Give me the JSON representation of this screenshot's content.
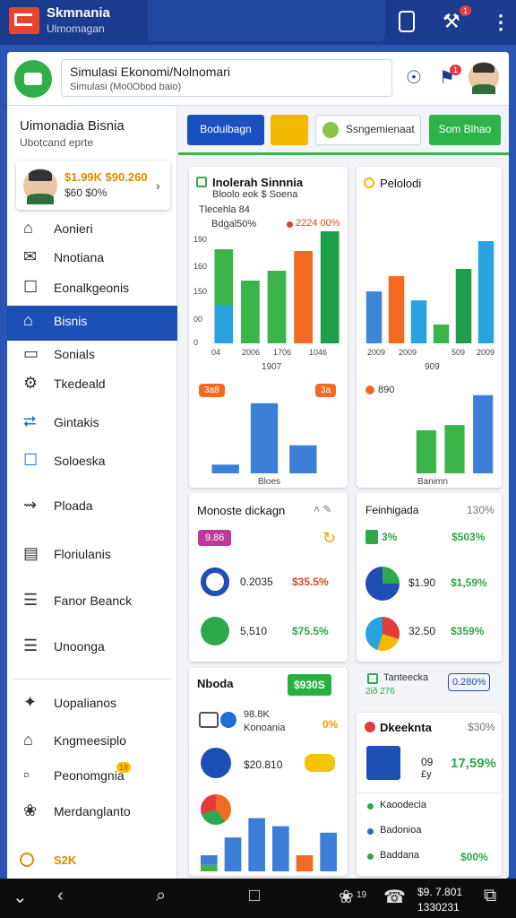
{
  "top_bar": {
    "app_name": "Skmnania",
    "app_subtitle": "Ulmomagan",
    "badge": "1"
  },
  "header": {
    "search_title": "Simulasi Ekonomi/Nolnomari",
    "search_subtitle": "Simulasi (Mo0Obod baio)",
    "badge": "1"
  },
  "sidebar": {
    "title": "Uimonadia Bisnia",
    "subtitle": "Ubotcand eprte",
    "profile": {
      "amounts": "$1.99K $90.260",
      "detail": "$60 $0%"
    },
    "menu": [
      "Aonieri",
      "Nnotiana",
      "Eonalkgeonis",
      "Bisnis",
      "Sonials",
      "Tkedeald",
      "Gintakis",
      "Soloeska",
      "Ploada",
      "Floriulanis",
      "Fanor Beanck",
      "Unoonga",
      "Uopalianos",
      "Kngmeesiplo",
      "Peonomgnia",
      "Merdanglanto"
    ],
    "menu_badge": "18",
    "footer": "S2K"
  },
  "toolbar": {
    "primary": "Bodulbagn",
    "search": "Ssngemienaat",
    "action": "Som Blhao"
  },
  "cards": [
    {
      "title": "Inolerah Sinnnia",
      "subtitle": "Bloolo eok $ Soena",
      "line1": "Tlecehla 84",
      "line2": "Bdgal50%",
      "legend": "2224 00%",
      "y_labels": [
        "190",
        "160",
        "150",
        "00",
        "0"
      ],
      "x_labels": [
        "04",
        "2006",
        "1706",
        "1046"
      ],
      "x_title": "1907",
      "chart": {
        "ylim": [
          0,
          130
        ],
        "bars": [
          [
            {
              "value": 43,
              "color": "#29a3e0"
            },
            {
              "value": 62,
              "color": "#3bb54a"
            }
          ],
          [
            {
              "value": 70,
              "color": "#3bb54a"
            }
          ],
          [
            {
              "value": 81,
              "color": "#3bb54a"
            }
          ],
          [
            {
              "value": 103,
              "color": "#f26a21"
            }
          ],
          [
            {
              "value": 125,
              "color": "#1f9e4a"
            }
          ]
        ]
      }
    },
    {
      "title": "Pelolodi",
      "x_labels": [
        "2009",
        "2009",
        "509",
        "2009"
      ],
      "x_title": "909",
      "chart": {
        "ylim": [
          0,
          130
        ],
        "bars": [
          [
            {
              "value": 58,
              "color": "#3d86d8"
            }
          ],
          [
            {
              "value": 75,
              "color": "#f26a21"
            }
          ],
          [
            {
              "value": 48,
              "color": "#29a3e0"
            }
          ],
          [
            {
              "value": 21,
              "color": "#3bb54a"
            }
          ],
          [
            {
              "value": 83,
              "color": "#1f9e4a"
            }
          ],
          [
            {
              "value": 114,
              "color": "#29a3e0"
            }
          ]
        ]
      }
    },
    {
      "badges": [
        "3a8",
        "3a"
      ],
      "x_title": "Bloes",
      "chart": {
        "ylim": [
          0,
          90
        ],
        "bars": [
          [
            {
              "value": 10,
              "color": "#3d7fd8"
            }
          ],
          [
            {
              "value": 80,
              "color": "#3d7fd8"
            }
          ],
          [
            {
              "value": 32,
              "color": "#3d7fd8"
            }
          ]
        ]
      }
    },
    {
      "badge": "890",
      "x_title": "Banimn",
      "chart": {
        "ylim": [
          0,
          100
        ],
        "bars": [
          [
            {
              "value": 49,
              "color": "#3bb54a"
            }
          ],
          [
            {
              "value": 55,
              "color": "#3bb54a"
            }
          ],
          [
            {
              "value": 89,
              "color": "#3d7fd8"
            }
          ]
        ]
      }
    },
    {
      "title": "Monoste dickagn",
      "badge": "9.86",
      "rows": [
        {
          "value": "0.2035",
          "change": "$35.5%"
        },
        {
          "value": "5,510",
          "change": "$75.5%"
        }
      ]
    },
    {
      "title": "Feinhigada",
      "change": "130%",
      "tag": "3%",
      "tag_value": "$503%",
      "rows": [
        {
          "value": "$1.90",
          "change": "$1,59%"
        },
        {
          "value": "32.50",
          "change": "$359%"
        }
      ],
      "note": "Tanteecka",
      "note_sub": "2ið 276",
      "note_value": "0.280%"
    },
    {
      "title": "Nboda",
      "badge": "$930S",
      "stat": "98.8K",
      "stat_label": "Konoania",
      "stat_change": "0%",
      "amount": "$20.810",
      "chart": {
        "ylim": [
          0,
          80
        ],
        "bars": [
          [
            {
              "value": 8,
              "color": "#3bb54a"
            },
            {
              "value": 12,
              "color": "#3d7fd8"
            }
          ],
          [
            {
              "value": 42,
              "color": "#3d7fd8"
            }
          ],
          [
            {
              "value": 66,
              "color": "#3d7fd8"
            }
          ],
          [
            {
              "value": 56,
              "color": "#3d7fd8"
            }
          ],
          [
            {
              "value": 20,
              "color": "#f26a21"
            }
          ],
          [
            {
              "value": 48,
              "color": "#3d7fd8"
            }
          ]
        ]
      }
    },
    {
      "title": "Dkeeknta",
      "change": "$30%",
      "value": "09",
      "value_sub": "£y",
      "value_change": "17,59%",
      "list": [
        "Kaoodecia",
        "Badonioa",
        "Baddana"
      ],
      "list_value": "$00%"
    }
  ],
  "bottom_bar": {
    "time": "$9. 7.801",
    "date": "1330231",
    "badge": "19"
  }
}
